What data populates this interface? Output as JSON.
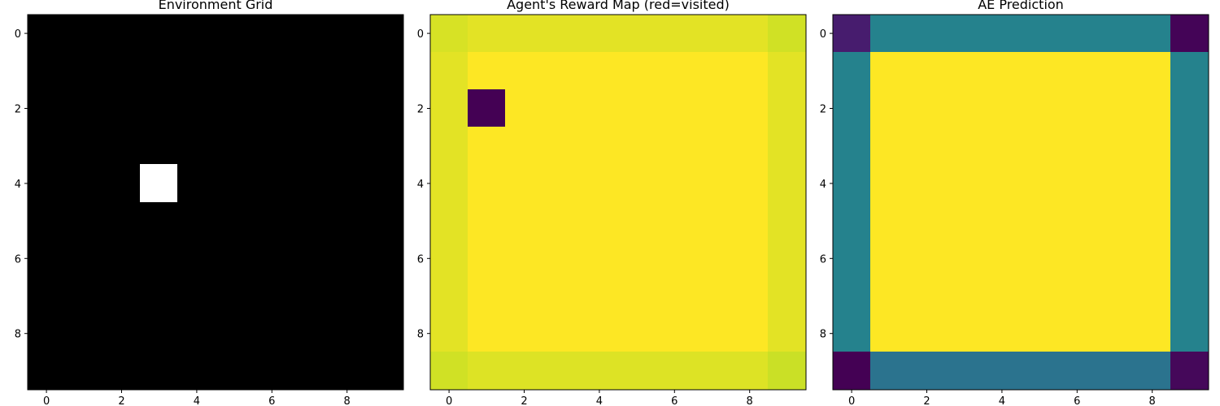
{
  "chart_data": [
    {
      "type": "heatmap",
      "title": "Environment Grid",
      "colormap": "gray",
      "xticks": [
        0,
        2,
        4,
        6,
        8
      ],
      "yticks": [
        0,
        2,
        4,
        6,
        8
      ],
      "xlim": [
        -0.5,
        9.5
      ],
      "ylim": [
        9.5,
        -0.5
      ],
      "grid": false,
      "values": [
        [
          0,
          0,
          0,
          0,
          0,
          0,
          0,
          0,
          0,
          0
        ],
        [
          0,
          0,
          0,
          0,
          0,
          0,
          0,
          0,
          0,
          0
        ],
        [
          0,
          0,
          0,
          0,
          0,
          0,
          0,
          0,
          0,
          0
        ],
        [
          0,
          0,
          0,
          0,
          0,
          0,
          0,
          0,
          0,
          0
        ],
        [
          0,
          0,
          0,
          1,
          0,
          0,
          0,
          0,
          0,
          0
        ],
        [
          0,
          0,
          0,
          0,
          0,
          0,
          0,
          0,
          0,
          0
        ],
        [
          0,
          0,
          0,
          0,
          0,
          0,
          0,
          0,
          0,
          0
        ],
        [
          0,
          0,
          0,
          0,
          0,
          0,
          0,
          0,
          0,
          0
        ],
        [
          0,
          0,
          0,
          0,
          0,
          0,
          0,
          0,
          0,
          0
        ],
        [
          0,
          0,
          0,
          0,
          0,
          0,
          0,
          0,
          0,
          0
        ]
      ]
    },
    {
      "type": "heatmap",
      "title": "Agent's Reward Map (red=visited)",
      "colormap": "viridis",
      "xticks": [
        0,
        2,
        4,
        6,
        8
      ],
      "yticks": [
        0,
        2,
        4,
        6,
        8
      ],
      "xlim": [
        -0.5,
        9.5
      ],
      "ylim": [
        9.5,
        -0.5
      ],
      "grid": false,
      "values": [
        [
          0.94,
          0.96,
          0.96,
          0.96,
          0.96,
          0.96,
          0.96,
          0.96,
          0.96,
          0.93
        ],
        [
          0.96,
          1.0,
          1.0,
          1.0,
          1.0,
          1.0,
          1.0,
          1.0,
          1.0,
          0.96
        ],
        [
          0.96,
          0.0,
          1.0,
          1.0,
          1.0,
          1.0,
          1.0,
          1.0,
          1.0,
          0.96
        ],
        [
          0.96,
          1.0,
          1.0,
          1.0,
          1.0,
          1.0,
          1.0,
          1.0,
          1.0,
          0.96
        ],
        [
          0.96,
          1.0,
          1.0,
          1.0,
          1.0,
          1.0,
          1.0,
          1.0,
          1.0,
          0.96
        ],
        [
          0.96,
          1.0,
          1.0,
          1.0,
          1.0,
          1.0,
          1.0,
          1.0,
          1.0,
          0.96
        ],
        [
          0.96,
          1.0,
          1.0,
          1.0,
          1.0,
          1.0,
          1.0,
          1.0,
          1.0,
          0.96
        ],
        [
          0.96,
          1.0,
          1.0,
          1.0,
          1.0,
          1.0,
          1.0,
          1.0,
          1.0,
          0.96
        ],
        [
          0.96,
          1.0,
          1.0,
          1.0,
          1.0,
          1.0,
          1.0,
          1.0,
          1.0,
          0.96
        ],
        [
          0.93,
          0.95,
          0.95,
          0.95,
          0.95,
          0.95,
          0.95,
          0.95,
          0.95,
          0.92
        ]
      ]
    },
    {
      "type": "heatmap",
      "title": "AE Prediction",
      "colormap": "viridis",
      "xticks": [
        0,
        2,
        4,
        6,
        8
      ],
      "yticks": [
        0,
        2,
        4,
        6,
        8
      ],
      "xlim": [
        -0.5,
        9.5
      ],
      "ylim": [
        9.5,
        -0.5
      ],
      "grid": false,
      "values": [
        [
          0.08,
          0.44,
          0.44,
          0.44,
          0.44,
          0.44,
          0.44,
          0.44,
          0.44,
          0.01
        ],
        [
          0.44,
          1.0,
          1.0,
          1.0,
          1.0,
          1.0,
          1.0,
          1.0,
          1.0,
          0.44
        ],
        [
          0.44,
          1.0,
          1.0,
          1.0,
          1.0,
          1.0,
          1.0,
          1.0,
          1.0,
          0.44
        ],
        [
          0.44,
          1.0,
          1.0,
          1.0,
          1.0,
          1.0,
          1.0,
          1.0,
          1.0,
          0.44
        ],
        [
          0.44,
          1.0,
          1.0,
          1.0,
          1.0,
          1.0,
          1.0,
          1.0,
          1.0,
          0.44
        ],
        [
          0.44,
          1.0,
          1.0,
          1.0,
          1.0,
          1.0,
          1.0,
          1.0,
          1.0,
          0.44
        ],
        [
          0.44,
          1.0,
          1.0,
          1.0,
          1.0,
          1.0,
          1.0,
          1.0,
          1.0,
          0.44
        ],
        [
          0.44,
          1.0,
          1.0,
          1.0,
          1.0,
          1.0,
          1.0,
          1.0,
          1.0,
          0.44
        ],
        [
          0.44,
          1.0,
          1.0,
          1.0,
          1.0,
          1.0,
          1.0,
          1.0,
          1.0,
          0.44
        ],
        [
          0.0,
          0.38,
          0.38,
          0.38,
          0.38,
          0.38,
          0.38,
          0.38,
          0.38,
          0.02
        ]
      ]
    }
  ]
}
